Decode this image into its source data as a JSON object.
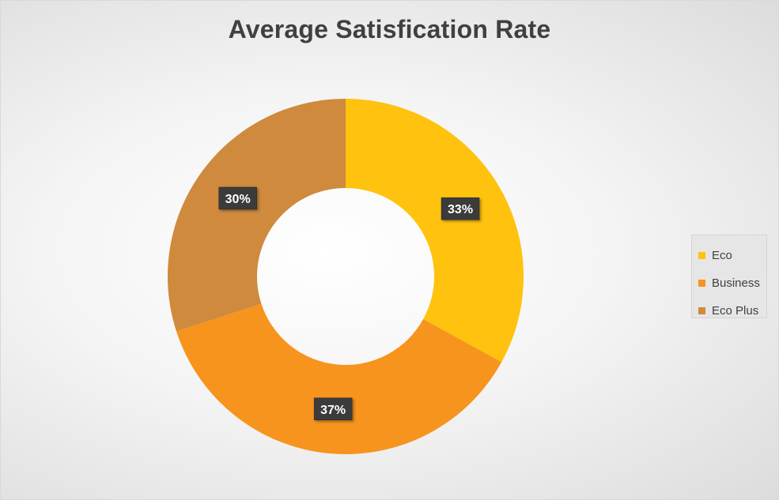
{
  "chart_data": {
    "type": "donut",
    "title": "Average Satisfication Rate",
    "categories": [
      "Eco",
      "Business",
      "Eco Plus"
    ],
    "values": [
      33,
      37,
      30
    ],
    "data_labels": [
      "33%",
      "37%",
      "30%"
    ],
    "colors": [
      "#FFC20E",
      "#F7941D",
      "#CF8A3E"
    ],
    "legend_position": "right",
    "start_angle_degrees": 0
  }
}
